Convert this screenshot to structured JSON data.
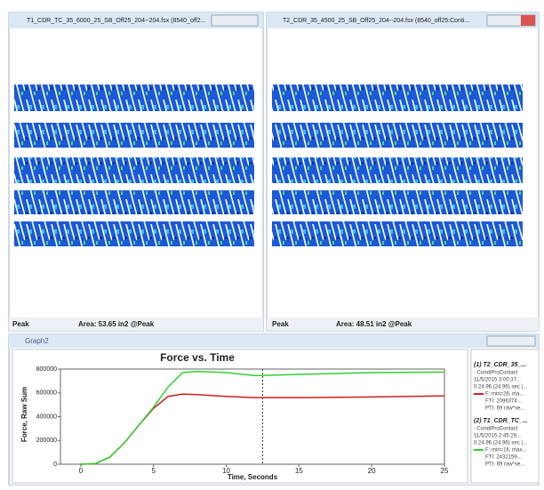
{
  "windows": [
    {
      "title": "T1_CDR_TC_35_6000_25_SB_Off25_204--204.fsx (8540_off2...",
      "status_mode": "Peak",
      "status_area": "Area: 53.65 in2 @Peak"
    },
    {
      "title": "T2_CDR_35_4500_25_SB_Off25_204--204.fsx (8540_off25:Conti...",
      "status_mode": "Peak",
      "status_area": "Area: 48.51 in2 @Peak"
    }
  ],
  "graph_window": {
    "title": "Graph2",
    "legend_details": [
      {
        "lines": [
          "- CondiProContact",
          "11/5/2015 3:00:37...",
          "0.24.96 (24.96) sec (...",
          "F: min=26, ma...",
          "FTI: 2096374...",
          "PTI: 69 raw*se..."
        ]
      },
      {
        "lines": [
          "- CondiProContact",
          "11/5/2015 2:45:29...",
          "0.24.96 (24.96) sec (...",
          "F: min=16, max...",
          "FTI: 2432159...",
          "PTI: 69 raw*se..."
        ]
      }
    ]
  },
  "chart_data": {
    "type": "line",
    "title": "Force vs. Time",
    "x_label": "Time, Seconds",
    "y_label": "Force, Raw Sum",
    "x": [
      0,
      1,
      2,
      3,
      4,
      5,
      6,
      7,
      8,
      10,
      12,
      15,
      20,
      25
    ],
    "series": [
      {
        "name": "(1) T2_CDR_35_...",
        "color": "#cc2020",
        "values": [
          0,
          5000,
          60000,
          180000,
          330000,
          470000,
          570000,
          590000,
          585000,
          570000,
          560000,
          560000,
          565000,
          575000
        ]
      },
      {
        "name": "(2) T1_CDR_TC_...",
        "color": "#30d030",
        "values": [
          0,
          5000,
          60000,
          180000,
          330000,
          480000,
          650000,
          770000,
          780000,
          770000,
          745000,
          755000,
          770000,
          775000
        ]
      }
    ],
    "xlim": [
      -1.4,
      25
    ],
    "xticks": [
      0,
      5,
      10,
      15,
      20,
      25
    ],
    "ylim": [
      0,
      800000
    ],
    "yticks": [
      0,
      200000,
      400000,
      600000,
      800000
    ],
    "cursor_x": 12.5
  }
}
